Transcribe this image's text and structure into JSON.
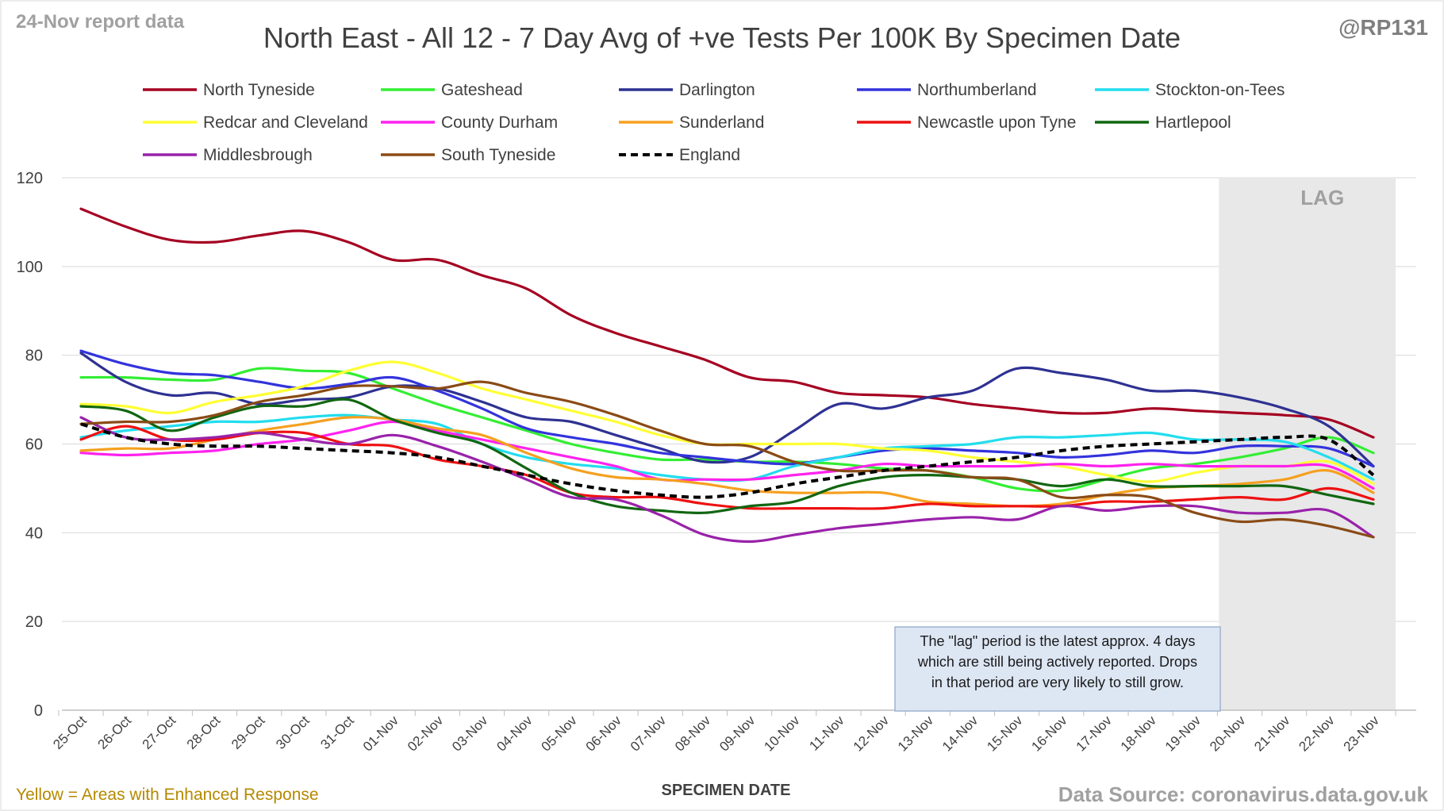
{
  "header": {
    "report_tag": "24-Nov report data",
    "handle": "@RP131"
  },
  "footer": {
    "note": "Yellow = Areas with Enhanced Response",
    "source": "Data Source: coronavirus.data.gov.uk"
  },
  "lag": {
    "label": "LAG",
    "start": "20-Nov",
    "end": "23-Nov",
    "note_lines": [
      "The \"lag\" period is the latest approx. 4 days",
      "which are still being actively reported.  Drops",
      "in that period are very likely to still grow."
    ]
  },
  "colors": {
    "lag_band": "#e8e8e8",
    "grid": "#d9d9d9",
    "note_bg": "#dde6f3",
    "note_border": "#9fb3cf",
    "footer_note": "#b58900"
  },
  "chart_data": {
    "type": "line",
    "title": "North East - All 12 - 7 Day Avg of +ve Tests Per 100K By Specimen Date",
    "xlabel": "SPECIMEN DATE",
    "ylabel": "",
    "ylim": [
      0,
      120
    ],
    "yticks": [
      0,
      20,
      40,
      60,
      80,
      100,
      120
    ],
    "grid": true,
    "legend_position": "top",
    "categories": [
      "25-Oct",
      "26-Oct",
      "27-Oct",
      "28-Oct",
      "29-Oct",
      "30-Oct",
      "31-Oct",
      "01-Nov",
      "02-Nov",
      "03-Nov",
      "04-Nov",
      "05-Nov",
      "06-Nov",
      "07-Nov",
      "08-Nov",
      "09-Nov",
      "10-Nov",
      "11-Nov",
      "12-Nov",
      "13-Nov",
      "14-Nov",
      "15-Nov",
      "16-Nov",
      "17-Nov",
      "18-Nov",
      "19-Nov",
      "20-Nov",
      "21-Nov",
      "22-Nov",
      "23-Nov"
    ],
    "series": [
      {
        "name": "North Tyneside",
        "color": "#a50021",
        "values": [
          113,
          109,
          106,
          105.5,
          107,
          108,
          105.5,
          101.5,
          101.5,
          98,
          95,
          89,
          85,
          82,
          79,
          75,
          74,
          71.5,
          71,
          70.5,
          69,
          68,
          67,
          67,
          68,
          67.5,
          67,
          66.5,
          65.5,
          61.5
        ]
      },
      {
        "name": "Gateshead",
        "color": "#33ee33",
        "values": [
          75,
          75,
          74.5,
          74.5,
          77,
          76.5,
          76,
          72.5,
          69,
          66,
          63,
          60,
          58,
          56.5,
          56.5,
          56,
          56,
          55.5,
          54.5,
          54,
          52.5,
          50,
          49.5,
          52,
          54.5,
          55.5,
          57,
          59,
          61.5,
          58
        ]
      },
      {
        "name": "Darlington",
        "color": "#2e3192",
        "values": [
          80.5,
          74,
          71,
          71.5,
          69,
          70,
          70.5,
          73,
          72.5,
          69.5,
          66,
          65,
          62,
          59,
          56,
          57,
          63,
          69,
          68,
          70.5,
          72,
          77,
          76,
          74.5,
          72,
          72,
          70.5,
          68,
          64,
          55
        ]
      },
      {
        "name": "Northumberland",
        "color": "#3333dd",
        "values": [
          81,
          78,
          76,
          75.5,
          74,
          72.5,
          73.5,
          75,
          72,
          68,
          63.5,
          61.5,
          60,
          58,
          57,
          56,
          55.5,
          57,
          58.5,
          59,
          58.5,
          58,
          57,
          57.5,
          58.5,
          58,
          59.5,
          59.5,
          59,
          55
        ]
      },
      {
        "name": "Stockton-on-Tees",
        "color": "#22ddee",
        "values": [
          61.5,
          63,
          64,
          65,
          65,
          66,
          66.5,
          65.5,
          64.5,
          60,
          57,
          55.5,
          54.5,
          53,
          52,
          52,
          55,
          57,
          59,
          59.5,
          60,
          61.5,
          61.5,
          62,
          62.5,
          61,
          61,
          60.5,
          57,
          52
        ]
      },
      {
        "name": "Redcar and Cleveland",
        "color": "#ffff33",
        "values": [
          69,
          68.5,
          67,
          69.5,
          71,
          73,
          76.5,
          78.5,
          76,
          72.5,
          70,
          67.5,
          65,
          62,
          60,
          60,
          60,
          60,
          59,
          58.5,
          57,
          56,
          55,
          53,
          51.5,
          53.5,
          55,
          55,
          56,
          51
        ]
      },
      {
        "name": "County Durham",
        "color": "#ff22ee",
        "values": [
          58,
          57.5,
          58,
          58.5,
          60,
          61,
          63,
          65,
          63,
          61,
          59,
          57,
          55,
          52,
          52,
          52,
          53,
          54,
          55.5,
          55,
          55,
          55,
          55.5,
          55,
          55.5,
          55,
          55,
          55,
          55,
          50
        ]
      },
      {
        "name": "Sunderland",
        "color": "#f5a020",
        "values": [
          58.5,
          59,
          59,
          61,
          63,
          64.5,
          66,
          65.5,
          63.5,
          62,
          58,
          54.5,
          52.5,
          52,
          51,
          49.5,
          49,
          49,
          49,
          47,
          46.5,
          46,
          46.5,
          48.5,
          50,
          50.5,
          51,
          52,
          54,
          49
        ]
      },
      {
        "name": "Newcastle upon Tyne",
        "color": "#ee1111",
        "values": [
          61,
          64,
          61,
          61,
          62.5,
          62.5,
          60,
          59.5,
          56.5,
          55,
          53,
          49,
          48,
          48,
          46.5,
          45.5,
          45.5,
          45.5,
          45.5,
          46.5,
          46,
          46,
          46,
          47,
          47,
          47.5,
          48,
          47.5,
          50,
          47.5
        ]
      },
      {
        "name": "Hartlepool",
        "color": "#116611",
        "values": [
          68.5,
          67.5,
          63,
          66,
          68.5,
          68.5,
          70,
          65.5,
          62.5,
          60,
          54.5,
          49,
          46,
          45,
          44.5,
          46,
          47,
          50.5,
          52.5,
          53,
          52.5,
          52,
          50.5,
          52,
          50.5,
          50.5,
          50.5,
          50.5,
          48.5,
          46.5
        ]
      },
      {
        "name": "Middlesbrough",
        "color": "#9922aa",
        "values": [
          66,
          61.5,
          61,
          61.5,
          62.5,
          61,
          60,
          62,
          59.5,
          56,
          52,
          48,
          47.5,
          44,
          39.5,
          38,
          39.5,
          41,
          42,
          43,
          43.5,
          43,
          46,
          45,
          46,
          46,
          44.5,
          44.5,
          45,
          39
        ]
      },
      {
        "name": "South Tyneside",
        "color": "#8a4b16",
        "values": [
          64.5,
          65,
          65,
          66.5,
          69.5,
          71,
          73,
          73,
          72.5,
          74,
          71.5,
          69.5,
          66.5,
          63,
          60,
          59.5,
          56,
          54,
          54,
          54,
          52.5,
          52,
          48,
          48.5,
          48,
          44.5,
          42.5,
          43,
          41.5,
          39
        ]
      },
      {
        "name": "England",
        "color": "#000000",
        "dashed": true,
        "values": [
          64.5,
          61.5,
          60,
          59.5,
          59.5,
          59,
          58.5,
          58,
          57,
          55,
          53,
          51,
          49.5,
          48.5,
          48,
          49,
          51,
          52.5,
          54,
          55,
          56,
          57,
          58.5,
          59.5,
          60,
          60.5,
          61,
          61.5,
          61,
          53
        ]
      }
    ]
  }
}
